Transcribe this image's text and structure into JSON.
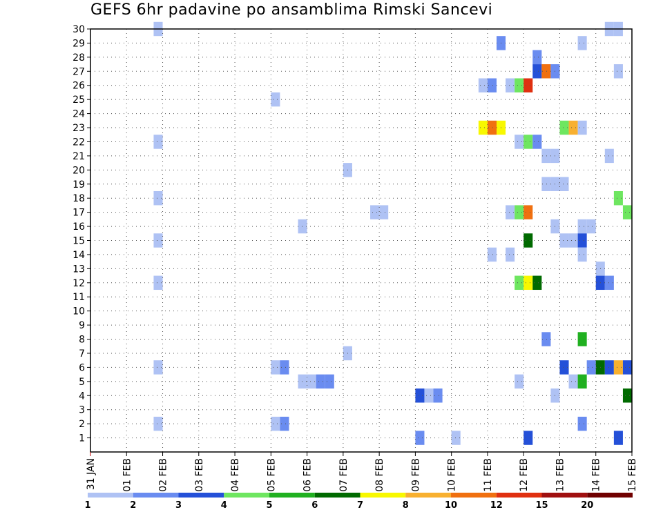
{
  "title": "GEFS 6hr padavine po ansamblima Rimski Sancevi",
  "chart_data": {
    "type": "heatmap",
    "title": "GEFS 6hr padavine po ansamblima Rimski Sancevi",
    "x_labels": [
      "31 JAN",
      "01 FEB",
      "02 FEB",
      "03 FEB",
      "04 FEB",
      "05 FEB",
      "06 FEB",
      "07 FEB",
      "08 FEB",
      "09 FEB",
      "10 FEB",
      "11 FEB",
      "12 FEB",
      "13 FEB",
      "14 FEB",
      "15 FEB"
    ],
    "xlim_days": [
      0,
      15
    ],
    "x_step_days": 0.25,
    "y_labels": [
      "1",
      "2",
      "3",
      "4",
      "5",
      "6",
      "7",
      "8",
      "9",
      "10",
      "11",
      "12",
      "13",
      "14",
      "15",
      "16",
      "17",
      "18",
      "19",
      "20",
      "21",
      "22",
      "23",
      "24",
      "25",
      "26",
      "27",
      "28",
      "29",
      "30"
    ],
    "ylim": [
      0,
      30
    ],
    "grid": "dotted",
    "colorbar": {
      "labels": [
        "1",
        "2",
        "3",
        "4",
        "5",
        "6",
        "7",
        "8",
        "10",
        "12",
        "15",
        "20"
      ],
      "colors": [
        "#afc2f4",
        "#6a8cf0",
        "#2450d8",
        "#6ee660",
        "#20b020",
        "#006a00",
        "#f8f800",
        "#f8b030",
        "#f07010",
        "#e03010",
        "#a01010",
        "#700000"
      ]
    },
    "cells": [
      {
        "day": 1.75,
        "member": 30,
        "level": 1
      },
      {
        "day": 14.25,
        "member": 30,
        "level": 1
      },
      {
        "day": 14.5,
        "member": 30,
        "level": 1
      },
      {
        "day": 11.25,
        "member": 29,
        "level": 2
      },
      {
        "day": 13.5,
        "member": 29,
        "level": 1
      },
      {
        "day": 12.25,
        "member": 28,
        "level": 2
      },
      {
        "day": 12.25,
        "member": 27,
        "level": 3
      },
      {
        "day": 12.5,
        "member": 27,
        "level": 9
      },
      {
        "day": 12.75,
        "member": 27,
        "level": 2
      },
      {
        "day": 14.5,
        "member": 27,
        "level": 1
      },
      {
        "day": 10.75,
        "member": 26,
        "level": 1
      },
      {
        "day": 11.0,
        "member": 26,
        "level": 2
      },
      {
        "day": 11.5,
        "member": 26,
        "level": 1
      },
      {
        "day": 11.75,
        "member": 26,
        "level": 4
      },
      {
        "day": 12.0,
        "member": 26,
        "level": 10
      },
      {
        "day": 5.0,
        "member": 25,
        "level": 1
      },
      {
        "day": 10.75,
        "member": 23,
        "level": 7
      },
      {
        "day": 11.0,
        "member": 23,
        "level": 9
      },
      {
        "day": 11.25,
        "member": 23,
        "level": 7
      },
      {
        "day": 13.0,
        "member": 23,
        "level": 4
      },
      {
        "day": 13.25,
        "member": 23,
        "level": 8
      },
      {
        "day": 13.5,
        "member": 23,
        "level": 1
      },
      {
        "day": 1.75,
        "member": 22,
        "level": 1
      },
      {
        "day": 11.75,
        "member": 22,
        "level": 1
      },
      {
        "day": 12.0,
        "member": 22,
        "level": 4
      },
      {
        "day": 12.25,
        "member": 22,
        "level": 2
      },
      {
        "day": 12.5,
        "member": 21,
        "level": 1
      },
      {
        "day": 12.75,
        "member": 21,
        "level": 1
      },
      {
        "day": 14.25,
        "member": 21,
        "level": 1
      },
      {
        "day": 7.0,
        "member": 20,
        "level": 1
      },
      {
        "day": 12.5,
        "member": 19,
        "level": 1
      },
      {
        "day": 12.75,
        "member": 19,
        "level": 1
      },
      {
        "day": 13.0,
        "member": 19,
        "level": 1
      },
      {
        "day": 1.75,
        "member": 18,
        "level": 1
      },
      {
        "day": 14.5,
        "member": 18,
        "level": 4
      },
      {
        "day": 7.75,
        "member": 17,
        "level": 1
      },
      {
        "day": 8.0,
        "member": 17,
        "level": 1
      },
      {
        "day": 11.5,
        "member": 17,
        "level": 1
      },
      {
        "day": 11.75,
        "member": 17,
        "level": 4
      },
      {
        "day": 12.0,
        "member": 17,
        "level": 9
      },
      {
        "day": 14.75,
        "member": 17,
        "level": 4
      },
      {
        "day": 5.75,
        "member": 16,
        "level": 1
      },
      {
        "day": 12.75,
        "member": 16,
        "level": 1
      },
      {
        "day": 13.5,
        "member": 16,
        "level": 1
      },
      {
        "day": 13.75,
        "member": 16,
        "level": 1
      },
      {
        "day": 1.75,
        "member": 15,
        "level": 1
      },
      {
        "day": 12.0,
        "member": 15,
        "level": 6
      },
      {
        "day": 13.0,
        "member": 15,
        "level": 1
      },
      {
        "day": 13.25,
        "member": 15,
        "level": 1
      },
      {
        "day": 13.5,
        "member": 15,
        "level": 3
      },
      {
        "day": 11.0,
        "member": 14,
        "level": 1
      },
      {
        "day": 11.5,
        "member": 14,
        "level": 1
      },
      {
        "day": 13.5,
        "member": 14,
        "level": 1
      },
      {
        "day": 14.0,
        "member": 13,
        "level": 1
      },
      {
        "day": 1.75,
        "member": 12,
        "level": 1
      },
      {
        "day": 11.75,
        "member": 12,
        "level": 4
      },
      {
        "day": 12.0,
        "member": 12,
        "level": 7
      },
      {
        "day": 12.25,
        "member": 12,
        "level": 6
      },
      {
        "day": 14.0,
        "member": 12,
        "level": 3
      },
      {
        "day": 14.25,
        "member": 12,
        "level": 2
      },
      {
        "day": 12.5,
        "member": 8,
        "level": 2
      },
      {
        "day": 13.5,
        "member": 8,
        "level": 5
      },
      {
        "day": 7.0,
        "member": 7,
        "level": 1
      },
      {
        "day": 1.75,
        "member": 6,
        "level": 1
      },
      {
        "day": 5.0,
        "member": 6,
        "level": 1
      },
      {
        "day": 5.25,
        "member": 6,
        "level": 2
      },
      {
        "day": 13.0,
        "member": 6,
        "level": 3
      },
      {
        "day": 13.75,
        "member": 6,
        "level": 2
      },
      {
        "day": 14.0,
        "member": 6,
        "level": 6
      },
      {
        "day": 14.25,
        "member": 6,
        "level": 3
      },
      {
        "day": 14.5,
        "member": 6,
        "level": 8
      },
      {
        "day": 14.75,
        "member": 6,
        "level": 3
      },
      {
        "day": 5.75,
        "member": 5,
        "level": 1
      },
      {
        "day": 6.0,
        "member": 5,
        "level": 1
      },
      {
        "day": 6.25,
        "member": 5,
        "level": 2
      },
      {
        "day": 6.5,
        "member": 5,
        "level": 2
      },
      {
        "day": 11.75,
        "member": 5,
        "level": 1
      },
      {
        "day": 13.25,
        "member": 5,
        "level": 1
      },
      {
        "day": 13.5,
        "member": 5,
        "level": 5
      },
      {
        "day": 9.0,
        "member": 4,
        "level": 3
      },
      {
        "day": 9.25,
        "member": 4,
        "level": 1
      },
      {
        "day": 9.5,
        "member": 4,
        "level": 2
      },
      {
        "day": 12.75,
        "member": 4,
        "level": 1
      },
      {
        "day": 14.75,
        "member": 4,
        "level": 6
      },
      {
        "day": 1.75,
        "member": 2,
        "level": 1
      },
      {
        "day": 5.0,
        "member": 2,
        "level": 1
      },
      {
        "day": 5.25,
        "member": 2,
        "level": 2
      },
      {
        "day": 13.5,
        "member": 2,
        "level": 2
      },
      {
        "day": 9.0,
        "member": 1,
        "level": 2
      },
      {
        "day": 10.0,
        "member": 1,
        "level": 1
      },
      {
        "day": 12.0,
        "member": 1,
        "level": 3
      },
      {
        "day": 14.5,
        "member": 1,
        "level": 3
      }
    ]
  }
}
